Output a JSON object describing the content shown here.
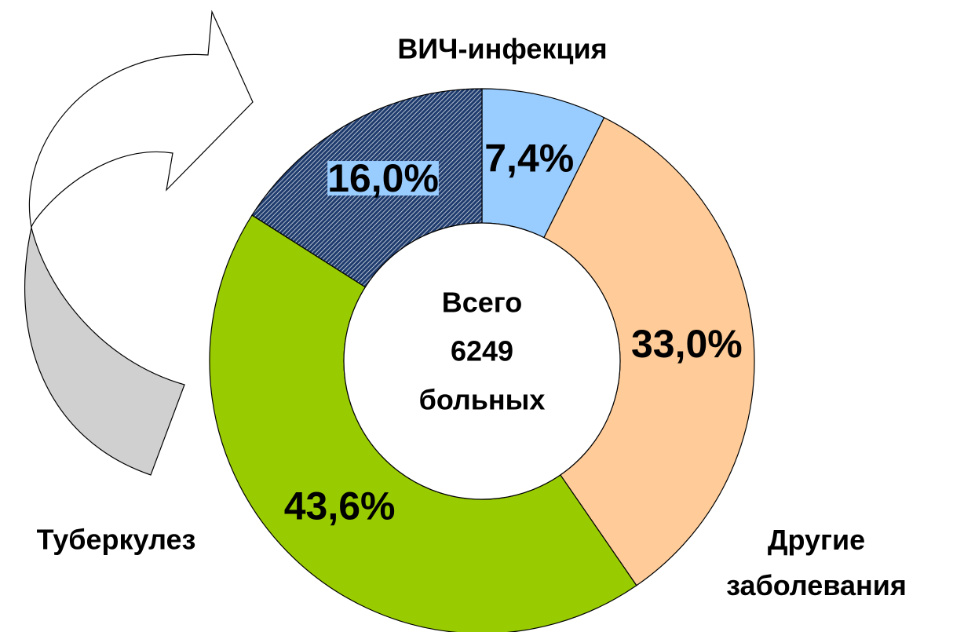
{
  "chart_data": {
    "type": "donut",
    "categories": [
      "ВИЧ-инфекция",
      "Другие заболевания",
      "Туберкулез",
      null
    ],
    "values": [
      7.4,
      33.0,
      43.6,
      16.0
    ],
    "value_labels": [
      "7,4%",
      "33,0%",
      "43,6%",
      "16,0%"
    ],
    "colors": [
      "#99ccff",
      "#ffcc99",
      "#99cc00",
      "#1f3c6e"
    ],
    "hatch": [
      false,
      false,
      false,
      true
    ],
    "center_text": [
      "Всего",
      "6249",
      "больных"
    ]
  }
}
